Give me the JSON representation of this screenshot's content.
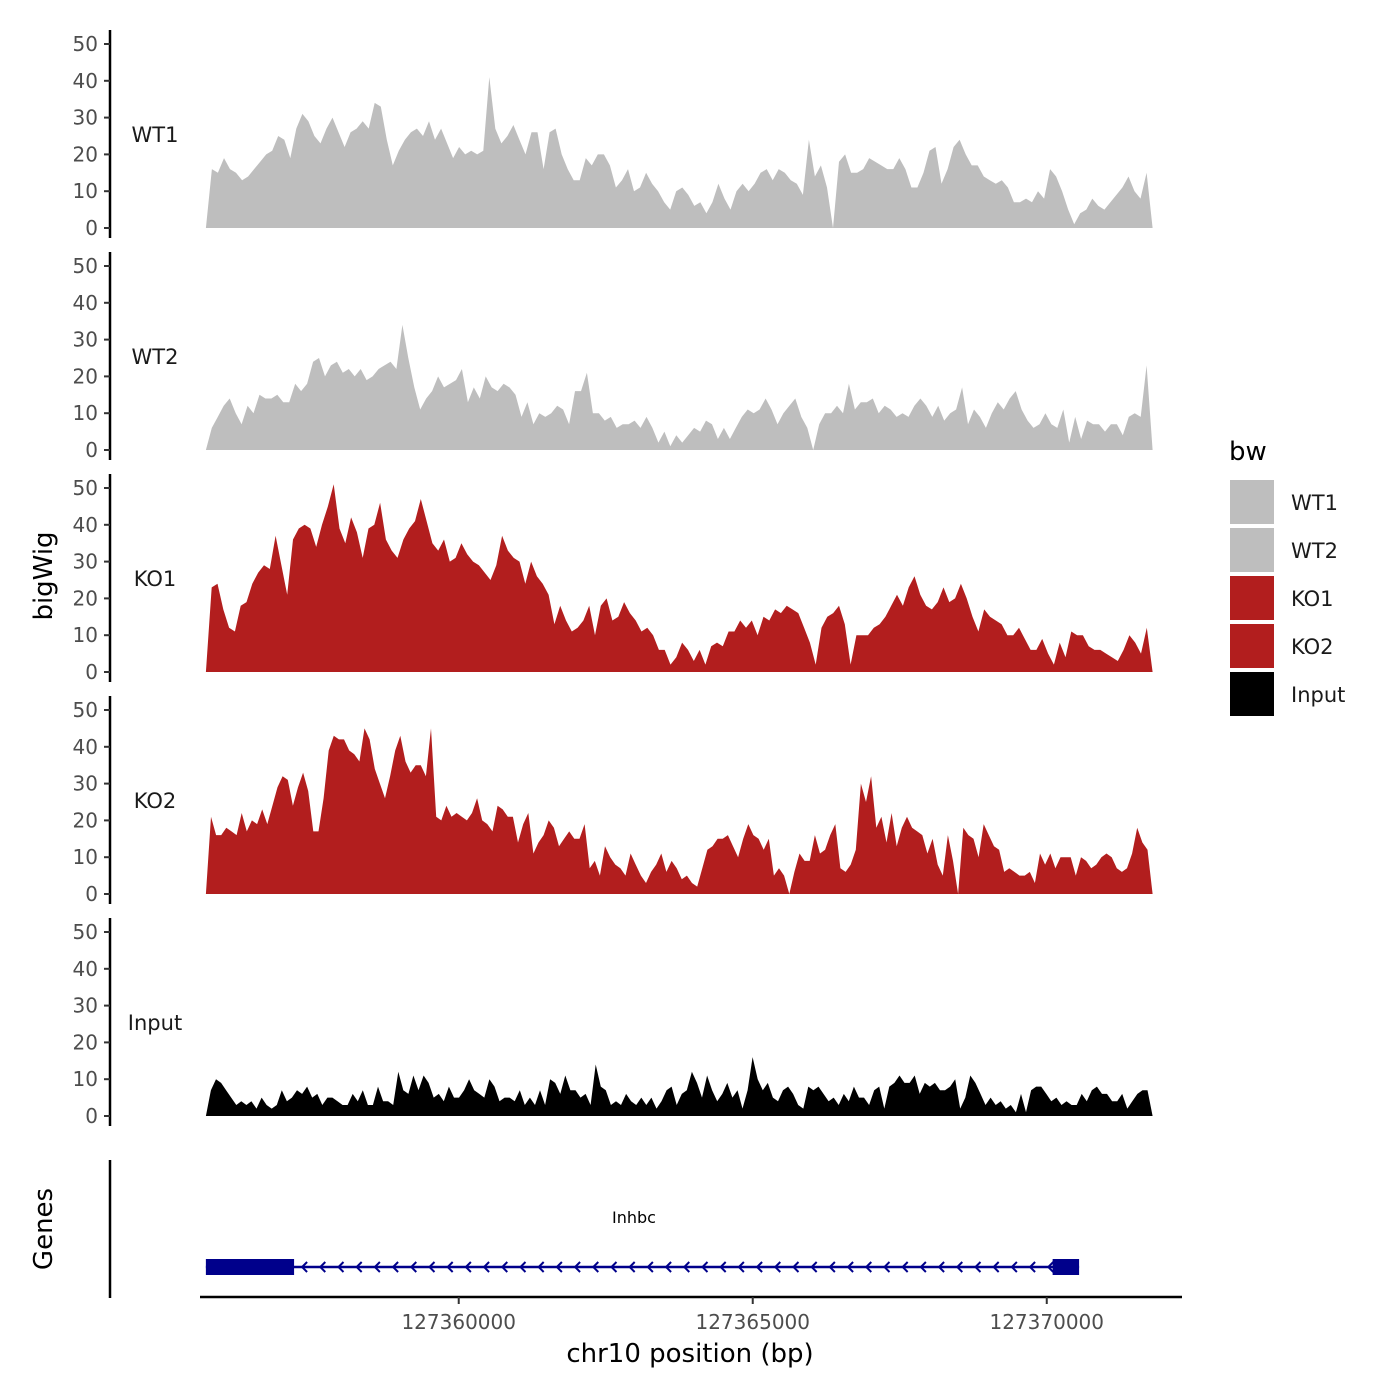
{
  "chart_data": {
    "type": "area",
    "ylabel": "bigWig",
    "xlabel": "chr10 position (bp)",
    "x_range": [
      127355600,
      127372300
    ],
    "x_ticks": [
      {
        "value": 127360000,
        "label": "127360000"
      },
      {
        "value": 127365000,
        "label": "127365000"
      },
      {
        "value": 127370000,
        "label": "127370000"
      }
    ],
    "ylim": [
      0,
      50
    ],
    "y_ticks": [
      0,
      10,
      20,
      30,
      40,
      50
    ],
    "y_tick_labels": [
      "0",
      "10",
      "20",
      "30",
      "40",
      "50"
    ],
    "series": [
      {
        "name": "WT1",
        "color": "#bebebe",
        "x_start": 127355700,
        "x_end": 127371800,
        "values": [
          0,
          16,
          15,
          19,
          16,
          15,
          13,
          14,
          16,
          18,
          20,
          21,
          25,
          24,
          19,
          27,
          31,
          29,
          25,
          23,
          27,
          30,
          26,
          22,
          26,
          27,
          29,
          27,
          34,
          33,
          24,
          17,
          21,
          24,
          26,
          27,
          25,
          29,
          24,
          27,
          23,
          19,
          22,
          20,
          21,
          20,
          21,
          41,
          27,
          23,
          25,
          28,
          24,
          20,
          26,
          26,
          16,
          26,
          27,
          20,
          16,
          13,
          13,
          19,
          17,
          20,
          20,
          17,
          11,
          13,
          16,
          10,
          11,
          15,
          12,
          10,
          7,
          5,
          10,
          11,
          9,
          6,
          7,
          4,
          7,
          12,
          8,
          5,
          10,
          12,
          10,
          12,
          15,
          16,
          13,
          16,
          15,
          13,
          12,
          9,
          24,
          14,
          17,
          11,
          0,
          18,
          20,
          15,
          15,
          16,
          19,
          18,
          17,
          16,
          16,
          19,
          16,
          11,
          11,
          15,
          21,
          22,
          12,
          16,
          22,
          24,
          20,
          17,
          17,
          14,
          13,
          12,
          13,
          11,
          7,
          7,
          8,
          7,
          10,
          8,
          16,
          14,
          10,
          5,
          1,
          4,
          5,
          8,
          6,
          5,
          7,
          9,
          11,
          14,
          10,
          8,
          15,
          0
        ]
      },
      {
        "name": "WT2",
        "color": "#bebebe",
        "x_start": 127355700,
        "x_end": 127371800,
        "values": [
          0,
          6,
          9,
          12,
          14,
          10,
          7,
          12,
          10,
          15,
          14,
          14,
          15,
          13,
          13,
          18,
          16,
          18,
          24,
          25,
          20,
          23,
          24,
          21,
          22,
          20,
          22,
          19,
          20,
          22,
          23,
          24,
          22,
          34,
          25,
          17,
          11,
          14,
          16,
          20,
          17,
          18,
          19,
          22,
          13,
          17,
          14,
          20,
          17,
          16,
          18,
          17,
          15,
          9,
          13,
          7,
          10,
          9,
          10,
          12,
          11,
          7,
          16,
          16,
          21,
          10,
          10,
          8,
          9,
          6,
          7,
          7,
          8,
          6,
          9,
          6,
          2,
          5,
          1,
          4,
          2,
          4,
          6,
          5,
          8,
          7,
          3,
          6,
          3,
          6,
          9,
          11,
          10,
          11,
          14,
          11,
          7,
          10,
          12,
          14,
          9,
          6,
          0,
          7,
          10,
          10,
          12,
          10,
          18,
          11,
          13,
          13,
          14,
          10,
          12,
          11,
          9,
          10,
          9,
          12,
          14,
          12,
          9,
          12,
          8,
          10,
          11,
          17,
          7,
          11,
          9,
          6,
          10,
          13,
          11,
          14,
          16,
          11,
          8,
          6,
          7,
          10,
          7,
          6,
          11,
          2,
          9,
          3,
          8,
          7,
          7,
          5,
          7,
          7,
          4,
          9,
          10,
          9,
          23,
          0
        ]
      },
      {
        "name": "KO1",
        "color": "#b21e1e",
        "x_start": 127355700,
        "x_end": 127371800,
        "values": [
          0,
          23,
          24,
          17,
          12,
          11,
          18,
          19,
          24,
          27,
          29,
          28,
          37,
          29,
          21,
          36,
          39,
          40,
          39,
          34,
          40,
          45,
          51,
          39,
          35,
          42,
          38,
          31,
          39,
          40,
          46,
          36,
          33,
          31,
          36,
          39,
          41,
          47,
          41,
          35,
          33,
          36,
          30,
          31,
          35,
          32,
          30,
          29,
          27,
          25,
          29,
          37,
          33,
          31,
          30,
          24,
          30,
          26,
          24,
          21,
          13,
          18,
          14,
          11,
          12,
          14,
          18,
          10,
          18,
          20,
          14,
          15,
          19,
          16,
          14,
          11,
          12,
          10,
          6,
          6,
          2,
          4,
          8,
          6,
          3,
          6,
          2,
          7,
          8,
          7,
          11,
          11,
          14,
          12,
          14,
          10,
          15,
          14,
          17,
          16,
          18,
          17,
          16,
          12,
          8,
          2,
          12,
          15,
          16,
          18,
          13,
          2,
          10,
          10,
          10,
          12,
          13,
          15,
          18,
          21,
          18,
          23,
          26,
          21,
          18,
          17,
          19,
          23,
          19,
          20,
          24,
          20,
          15,
          11,
          17,
          15,
          14,
          13,
          10,
          10,
          12,
          9,
          6,
          6,
          9,
          5,
          2,
          8,
          4,
          11,
          10,
          10,
          7,
          6,
          6,
          5,
          4,
          3,
          6,
          10,
          8,
          5,
          12,
          0
        ]
      },
      {
        "name": "KO2",
        "color": "#b21e1e",
        "x_start": 127355700,
        "x_end": 127371800,
        "values": [
          0,
          21,
          16,
          16,
          18,
          17,
          16,
          22,
          17,
          20,
          19,
          23,
          19,
          24,
          29,
          32,
          31,
          24,
          29,
          33,
          28,
          17,
          17,
          26,
          39,
          43,
          42,
          42,
          39,
          38,
          36,
          45,
          42,
          34,
          30,
          26,
          32,
          39,
          43,
          36,
          33,
          35,
          35,
          32,
          45,
          21,
          20,
          24,
          21,
          22,
          21,
          20,
          22,
          26,
          20,
          19,
          17,
          24,
          23,
          21,
          21,
          14,
          19,
          22,
          11,
          14,
          16,
          20,
          18,
          13,
          15,
          17,
          15,
          15,
          19,
          7,
          9,
          5,
          13,
          10,
          8,
          7,
          5,
          11,
          8,
          5,
          3,
          6,
          8,
          11,
          6,
          9,
          7,
          4,
          5,
          3,
          2,
          7,
          12,
          13,
          15,
          15,
          16,
          13,
          10,
          15,
          19,
          16,
          15,
          12,
          15,
          5,
          7,
          5,
          0,
          6,
          11,
          9,
          9,
          16,
          11,
          12,
          16,
          19,
          7,
          6,
          8,
          12,
          30,
          25,
          32,
          18,
          21,
          14,
          22,
          13,
          18,
          21,
          18,
          17,
          16,
          11,
          15,
          8,
          5,
          16,
          9,
          0,
          18,
          16,
          15,
          10,
          19,
          16,
          13,
          12,
          6,
          7,
          6,
          5,
          5,
          6,
          3,
          11,
          8,
          11,
          7,
          10,
          10,
          10,
          5,
          10,
          9,
          7,
          8,
          10,
          11,
          10,
          7,
          6,
          7,
          11,
          18,
          14,
          12,
          0
        ]
      },
      {
        "name": "Input",
        "color": "#000000",
        "x_start": 127355700,
        "x_end": 127371800,
        "values": [
          0,
          7,
          10,
          9,
          7,
          5,
          3,
          4,
          3,
          4,
          2,
          5,
          3,
          2,
          3,
          7,
          4,
          5,
          7,
          6,
          8,
          5,
          6,
          3,
          5,
          5,
          4,
          3,
          3,
          6,
          4,
          7,
          3,
          3,
          8,
          4,
          4,
          3,
          12,
          7,
          6,
          11,
          7,
          11,
          9,
          5,
          6,
          4,
          8,
          5,
          5,
          7,
          10,
          7,
          6,
          5,
          10,
          8,
          4,
          5,
          5,
          4,
          7,
          3,
          5,
          3,
          7,
          3,
          10,
          9,
          6,
          11,
          7,
          7,
          5,
          6,
          3,
          14,
          8,
          7,
          3,
          4,
          3,
          6,
          4,
          3,
          5,
          3,
          5,
          2,
          4,
          7,
          8,
          3,
          6,
          7,
          12,
          9,
          5,
          11,
          7,
          4,
          6,
          9,
          5,
          7,
          2,
          7,
          16,
          10,
          7,
          9,
          5,
          4,
          7,
          8,
          6,
          3,
          2,
          8,
          7,
          8,
          6,
          4,
          5,
          3,
          6,
          4,
          8,
          5,
          5,
          3,
          7,
          8,
          2,
          8,
          9,
          11,
          9,
          9,
          11,
          6,
          9,
          8,
          9,
          7,
          7,
          8,
          10,
          2,
          5,
          11,
          9,
          6,
          3,
          5,
          3,
          4,
          2,
          3,
          1,
          6,
          1,
          7,
          8,
          8,
          6,
          4,
          5,
          3,
          4,
          3,
          3,
          6,
          4,
          7,
          8,
          6,
          6,
          4,
          4,
          6,
          2,
          4,
          6,
          7,
          7,
          0
        ]
      }
    ],
    "legend": {
      "title": "bw",
      "position": "right",
      "entries": [
        {
          "label": "WT1",
          "color": "#bebebe"
        },
        {
          "label": "WT2",
          "color": "#bebebe"
        },
        {
          "label": "KO1",
          "color": "#b21e1e"
        },
        {
          "label": "KO2",
          "color": "#b21e1e"
        },
        {
          "label": "Input",
          "color": "#000000"
        }
      ]
    },
    "gene_track": {
      "label": "Genes",
      "color": "#00008b",
      "genes": [
        {
          "name": "Inhbc",
          "strand": "-",
          "start": 127355700,
          "end": 127370550,
          "exons": [
            [
              127355700,
              127357200
            ],
            [
              127370100,
              127370550
            ]
          ]
        }
      ]
    }
  }
}
